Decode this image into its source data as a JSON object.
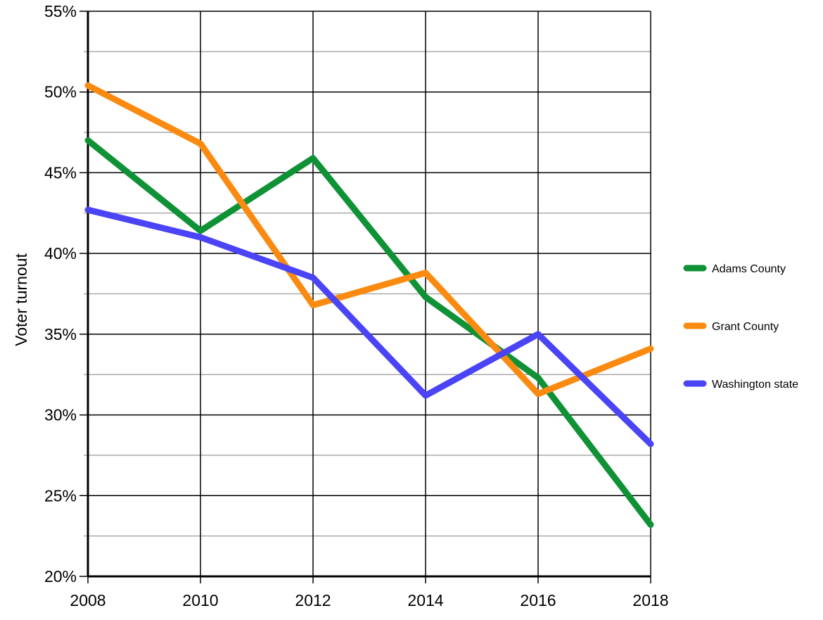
{
  "chart_data": {
    "type": "line",
    "y_label": "Voter turnout",
    "x": [
      2008,
      2010,
      2012,
      2014,
      2016,
      2018
    ],
    "xlim": [
      2008,
      2018
    ],
    "xticks": [
      2008,
      2010,
      2012,
      2014,
      2016,
      2018
    ],
    "ylim": [
      20,
      55
    ],
    "yticks": [
      {
        "value": 20,
        "label": "20%"
      },
      {
        "value": 25,
        "label": "25%"
      },
      {
        "value": 30,
        "label": "30%"
      },
      {
        "value": 35,
        "label": "35%"
      },
      {
        "value": 40,
        "label": "40%"
      },
      {
        "value": 45,
        "label": "45%"
      },
      {
        "value": 50,
        "label": "50%"
      },
      {
        "value": 55,
        "label": "55%"
      }
    ],
    "minor_yticks": [
      22.5,
      27.5,
      32.5,
      37.5,
      42.5,
      47.5,
      52.5
    ],
    "grid": true,
    "legend": "right",
    "series": [
      {
        "name": "Adams County",
        "color": "#0f9236",
        "values": [
          47.0,
          41.4,
          45.9,
          37.3,
          32.3,
          23.2
        ]
      },
      {
        "name": "Grant County",
        "color": "#fb8a10",
        "values": [
          50.4,
          46.8,
          36.8,
          38.8,
          31.3,
          34.1
        ]
      },
      {
        "name": "Washington state",
        "color": "#4a44f6",
        "values": [
          42.7,
          41.0,
          38.5,
          31.2,
          35.0,
          28.2
        ]
      }
    ]
  }
}
